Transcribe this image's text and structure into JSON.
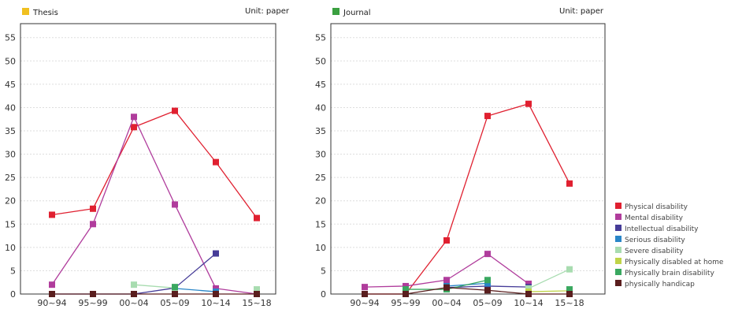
{
  "chart_data": [
    {
      "type": "line",
      "title": "Thesis",
      "title_marker_color": "#f0c020",
      "unit": "Unit: paper",
      "categories": [
        "90~94",
        "95~99",
        "00~04",
        "05~09",
        "10~14",
        "15~18"
      ],
      "ylim": [
        0,
        58
      ],
      "yticks": [
        0,
        5,
        10,
        15,
        20,
        25,
        30,
        35,
        40,
        45,
        50,
        55
      ],
      "grid": true,
      "series": [
        {
          "name": "Physical disability",
          "values": [
            17,
            18.3,
            35.8,
            39.3,
            28.3,
            16.3
          ]
        },
        {
          "name": "Mental disability",
          "values": [
            2,
            15,
            38,
            19.2,
            1.2,
            0
          ]
        },
        {
          "name": "Intellectual disability",
          "values": [
            0,
            0,
            0,
            1.3,
            8.7,
            null
          ]
        },
        {
          "name": "Serious disability",
          "values": [
            null,
            null,
            null,
            1.2,
            0.5,
            null
          ]
        },
        {
          "name": "Severe disability",
          "values": [
            null,
            null,
            2,
            1.3,
            null,
            1
          ]
        },
        {
          "name": "Physically disabled at home",
          "values": [
            null,
            null,
            null,
            null,
            0,
            null
          ]
        },
        {
          "name": "Physically brain disability",
          "values": [
            null,
            null,
            null,
            1.5,
            null,
            null
          ]
        },
        {
          "name": "physically handicap",
          "values": [
            0,
            0,
            0,
            0,
            0,
            0
          ]
        }
      ]
    },
    {
      "type": "line",
      "title": "Journal",
      "title_marker_color": "#3aa040",
      "unit": "Unit: paper",
      "categories": [
        "90~94",
        "95~99",
        "00~04",
        "05~09",
        "10~14",
        "15~18"
      ],
      "ylim": [
        0,
        58
      ],
      "yticks": [
        0,
        5,
        10,
        15,
        20,
        25,
        30,
        35,
        40,
        45,
        50,
        55
      ],
      "grid": true,
      "series": [
        {
          "name": "Physical disability",
          "values": [
            0,
            0,
            11.5,
            38.2,
            40.8,
            23.7
          ]
        },
        {
          "name": "Mental disability",
          "values": [
            1.5,
            1.7,
            3,
            8.6,
            2.2,
            null
          ]
        },
        {
          "name": "Intellectual disability",
          "values": [
            null,
            null,
            1.4,
            1.7,
            1.5,
            null
          ]
        },
        {
          "name": "Serious disability",
          "values": [
            null,
            null,
            1.7,
            2.3,
            null,
            null
          ]
        },
        {
          "name": "Severe disability",
          "values": [
            null,
            null,
            null,
            null,
            1.2,
            5.3
          ]
        },
        {
          "name": "Physically disabled at home",
          "values": [
            null,
            null,
            null,
            null,
            0.5,
            0.7
          ]
        },
        {
          "name": "Physically brain disability",
          "values": [
            null,
            1,
            1,
            3,
            null,
            1
          ]
        },
        {
          "name": "physically handicap",
          "values": [
            0,
            0,
            1.4,
            0.8,
            0,
            0
          ]
        }
      ]
    }
  ],
  "legend": {
    "placement": "right",
    "items": [
      {
        "name": "Physical disability",
        "color": "#e02030"
      },
      {
        "name": "Mental disability",
        "color": "#b03c9c"
      },
      {
        "name": "Intellectual disability",
        "color": "#463c98"
      },
      {
        "name": "Serious disability",
        "color": "#2a86c8"
      },
      {
        "name": "Severe disability",
        "color": "#a8dcb0"
      },
      {
        "name": "Physically disabled at home",
        "color": "#c0d448"
      },
      {
        "name": "Physically brain disability",
        "color": "#3aa860"
      },
      {
        "name": "physically handicap",
        "color": "#5a1e1e"
      }
    ]
  }
}
